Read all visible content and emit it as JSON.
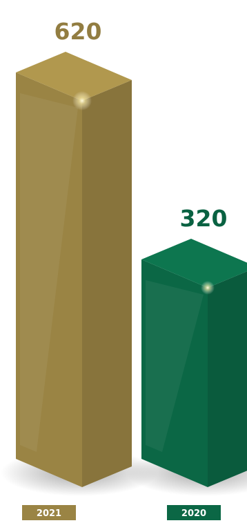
{
  "chart_data": {
    "type": "bar",
    "categories": [
      "2021",
      "2020"
    ],
    "values": [
      620,
      320
    ],
    "value_labels": [
      "620",
      "320"
    ],
    "colors": [
      "#9a8444",
      "#0b6745"
    ],
    "title": "",
    "xlabel": "",
    "ylabel": "",
    "legend": "none",
    "grid": false,
    "style": "3d-columns"
  }
}
